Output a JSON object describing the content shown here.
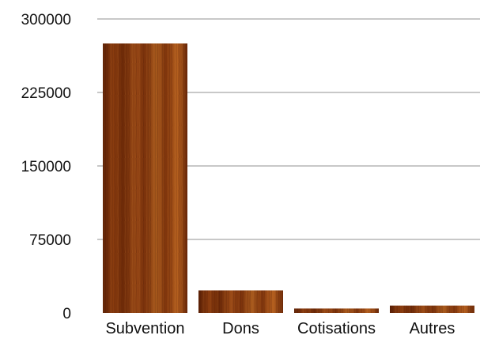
{
  "chart_data": {
    "type": "bar",
    "title": "",
    "xlabel": "",
    "ylabel": "",
    "categories": [
      "Subvention",
      "Dons",
      "Cotisations",
      "Autres"
    ],
    "values": [
      275000,
      23000,
      4500,
      7500
    ],
    "ylim": [
      0,
      300000
    ],
    "yticks": [
      0,
      75000,
      150000,
      225000,
      300000
    ],
    "ytick_labels": [
      "0",
      "75000",
      "150000",
      "225000",
      "300000"
    ],
    "grid": true,
    "legend": "none",
    "colors": {
      "bar_dark": "#5a1f05",
      "bar_mid": "#8a3c0f",
      "bar_light": "#b5601f",
      "grid": "#c8c8c8"
    }
  }
}
